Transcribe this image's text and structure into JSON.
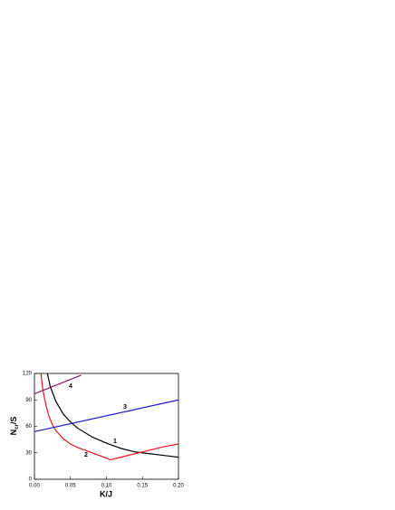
{
  "chart_data": {
    "type": "line",
    "xlabel": "K/J",
    "ylabel_parts": [
      "N",
      "cr",
      "/S"
    ],
    "xlim": [
      0,
      0.2
    ],
    "ylim": [
      0,
      120
    ],
    "xticks": [
      {
        "value": 0,
        "label": "0.00"
      },
      {
        "value": 0.05,
        "label": "0.05"
      },
      {
        "value": 0.1,
        "label": "0.10"
      },
      {
        "value": 0.15,
        "label": "0.15"
      },
      {
        "value": 0.2,
        "label": "0.20"
      }
    ],
    "yticks": [
      0,
      30,
      60,
      90,
      120
    ],
    "series": [
      {
        "name": "1",
        "color": "#000000",
        "x": [
          0.018,
          0.022,
          0.03,
          0.04,
          0.05,
          0.06,
          0.08,
          0.1,
          0.12,
          0.14,
          0.16,
          0.18,
          0.2
        ],
        "values": [
          120,
          105,
          88,
          74,
          65,
          58,
          48,
          41,
          35,
          31,
          29,
          27,
          25
        ]
      },
      {
        "name": "2",
        "color": "#e8141c",
        "x": [
          0.009,
          0.012,
          0.016,
          0.02,
          0.025,
          0.03,
          0.04,
          0.05,
          0.06,
          0.07,
          0.08,
          0.09,
          0.1,
          0.105,
          0.12,
          0.14,
          0.16,
          0.18,
          0.2
        ],
        "values": [
          120,
          100,
          84,
          72,
          62,
          55,
          46,
          40,
          36,
          33,
          30,
          27,
          24,
          22,
          25,
          29,
          33,
          37,
          40
        ]
      },
      {
        "name": "3",
        "color": "#1a1acc",
        "x": [
          0,
          0.2
        ],
        "values": [
          54,
          90
        ]
      },
      {
        "name": "4",
        "color": "#8a1a6e",
        "x": [
          0,
          0.065
        ],
        "values": [
          97,
          118
        ]
      }
    ]
  }
}
